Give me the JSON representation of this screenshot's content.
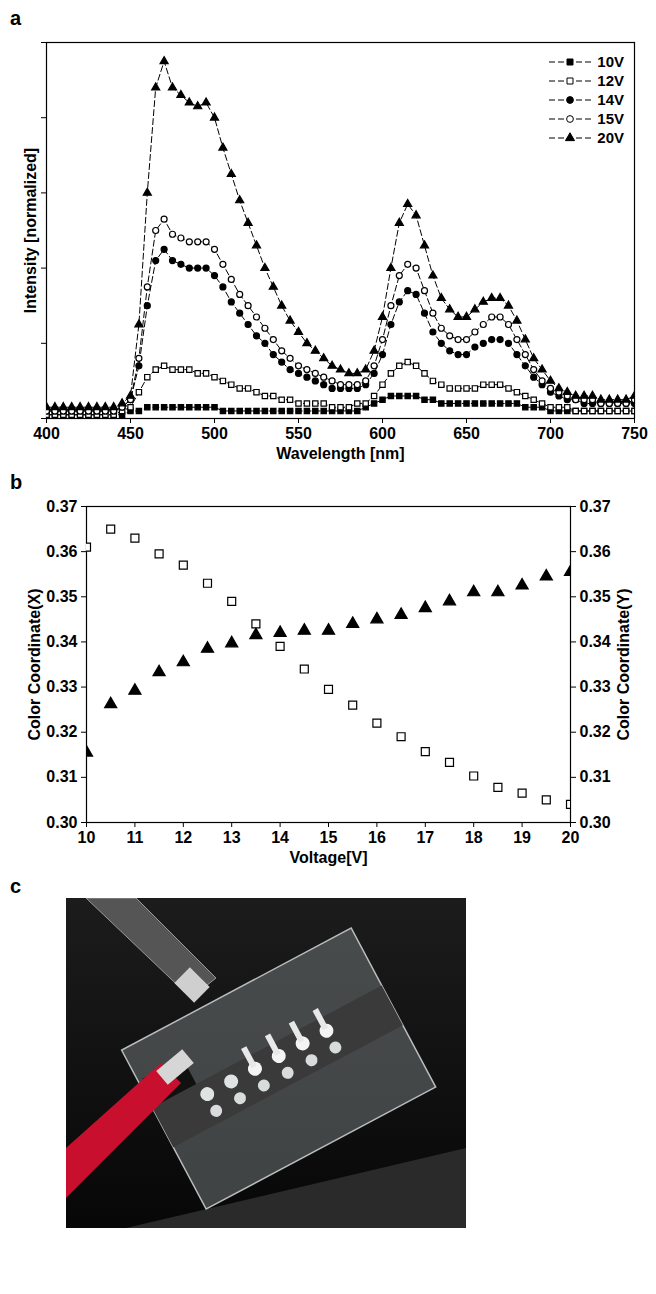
{
  "chart_data": [
    {
      "type": "line",
      "panel_label": "a",
      "xlabel": "Wavelength [nm]",
      "ylabel": "Intensity [normalized]",
      "xlim": [
        400,
        750
      ],
      "xticks": [
        400,
        450,
        500,
        550,
        600,
        650,
        700,
        750
      ],
      "ylim": [
        0,
        1
      ],
      "yticks": [
        0,
        0.2,
        0.4,
        0.6,
        0.8,
        1
      ],
      "tick_labels": "x",
      "legend": "upper right",
      "x": [
        400,
        405,
        410,
        415,
        420,
        425,
        430,
        435,
        440,
        445,
        450,
        455,
        460,
        465,
        470,
        475,
        480,
        485,
        490,
        495,
        500,
        505,
        510,
        515,
        520,
        525,
        530,
        535,
        540,
        545,
        550,
        555,
        560,
        565,
        570,
        575,
        580,
        585,
        590,
        595,
        600,
        605,
        610,
        615,
        620,
        625,
        630,
        635,
        640,
        645,
        650,
        655,
        660,
        665,
        670,
        675,
        680,
        685,
        690,
        695,
        700,
        705,
        710,
        715,
        720,
        725,
        730,
        735,
        740,
        745,
        750
      ],
      "series": [
        {
          "name": "10V",
          "color": "#000000",
          "marker": "square",
          "line_style": "dashed",
          "values": [
            0.01,
            0.01,
            0.01,
            0.01,
            0.01,
            0.01,
            0.01,
            0.01,
            0.01,
            0.01,
            0.02,
            0.02,
            0.03,
            0.03,
            0.03,
            0.03,
            0.03,
            0.03,
            0.03,
            0.03,
            0.03,
            0.02,
            0.02,
            0.02,
            0.02,
            0.02,
            0.02,
            0.02,
            0.02,
            0.02,
            0.02,
            0.02,
            0.02,
            0.02,
            0.02,
            0.02,
            0.02,
            0.02,
            0.03,
            0.04,
            0.05,
            0.06,
            0.06,
            0.06,
            0.06,
            0.05,
            0.05,
            0.04,
            0.04,
            0.04,
            0.04,
            0.04,
            0.04,
            0.04,
            0.04,
            0.04,
            0.04,
            0.03,
            0.03,
            0.03,
            0.02,
            0.02,
            0.02,
            0.02,
            0.02,
            0.02,
            0.02,
            0.02,
            0.02,
            0.02,
            0.02
          ]
        },
        {
          "name": "12V",
          "color": "#000000",
          "marker": "square-open",
          "line_style": "dashed",
          "values": [
            0.01,
            0.01,
            0.01,
            0.01,
            0.01,
            0.01,
            0.01,
            0.01,
            0.01,
            0.02,
            0.03,
            0.07,
            0.11,
            0.13,
            0.14,
            0.13,
            0.13,
            0.13,
            0.12,
            0.12,
            0.11,
            0.1,
            0.09,
            0.08,
            0.08,
            0.07,
            0.06,
            0.06,
            0.05,
            0.05,
            0.04,
            0.04,
            0.04,
            0.04,
            0.03,
            0.03,
            0.03,
            0.04,
            0.04,
            0.06,
            0.09,
            0.12,
            0.14,
            0.15,
            0.14,
            0.12,
            0.1,
            0.09,
            0.08,
            0.08,
            0.08,
            0.08,
            0.09,
            0.09,
            0.09,
            0.08,
            0.07,
            0.06,
            0.05,
            0.04,
            0.03,
            0.03,
            0.03,
            0.02,
            0.02,
            0.02,
            0.02,
            0.02,
            0.02,
            0.02,
            0.02
          ]
        },
        {
          "name": "14V",
          "color": "#000000",
          "marker": "circle",
          "line_style": "dashed",
          "values": [
            0.02,
            0.02,
            0.02,
            0.02,
            0.02,
            0.02,
            0.02,
            0.02,
            0.02,
            0.03,
            0.05,
            0.14,
            0.3,
            0.42,
            0.45,
            0.42,
            0.41,
            0.4,
            0.4,
            0.4,
            0.38,
            0.35,
            0.31,
            0.28,
            0.25,
            0.22,
            0.2,
            0.17,
            0.15,
            0.13,
            0.12,
            0.11,
            0.1,
            0.09,
            0.08,
            0.08,
            0.08,
            0.08,
            0.09,
            0.12,
            0.17,
            0.25,
            0.31,
            0.34,
            0.33,
            0.28,
            0.23,
            0.2,
            0.18,
            0.17,
            0.17,
            0.19,
            0.2,
            0.21,
            0.21,
            0.2,
            0.17,
            0.14,
            0.11,
            0.09,
            0.07,
            0.06,
            0.05,
            0.05,
            0.04,
            0.04,
            0.04,
            0.04,
            0.04,
            0.04,
            0.04
          ]
        },
        {
          "name": "15V",
          "color": "#000000",
          "marker": "circle-open",
          "line_style": "dashed",
          "values": [
            0.02,
            0.02,
            0.02,
            0.02,
            0.02,
            0.02,
            0.02,
            0.02,
            0.02,
            0.03,
            0.05,
            0.16,
            0.35,
            0.5,
            0.53,
            0.49,
            0.48,
            0.47,
            0.47,
            0.47,
            0.45,
            0.41,
            0.37,
            0.33,
            0.3,
            0.27,
            0.24,
            0.21,
            0.18,
            0.16,
            0.14,
            0.13,
            0.12,
            0.11,
            0.1,
            0.09,
            0.09,
            0.09,
            0.1,
            0.14,
            0.21,
            0.3,
            0.38,
            0.41,
            0.4,
            0.34,
            0.28,
            0.24,
            0.22,
            0.21,
            0.21,
            0.23,
            0.25,
            0.27,
            0.27,
            0.25,
            0.21,
            0.17,
            0.13,
            0.1,
            0.08,
            0.07,
            0.06,
            0.05,
            0.05,
            0.05,
            0.04,
            0.04,
            0.04,
            0.04,
            0.05
          ]
        },
        {
          "name": "20V",
          "color": "#000000",
          "marker": "triangle",
          "line_style": "dashed",
          "values": [
            0.03,
            0.03,
            0.03,
            0.03,
            0.03,
            0.03,
            0.03,
            0.03,
            0.03,
            0.04,
            0.06,
            0.25,
            0.6,
            0.88,
            0.95,
            0.88,
            0.86,
            0.84,
            0.83,
            0.84,
            0.8,
            0.72,
            0.65,
            0.58,
            0.52,
            0.46,
            0.4,
            0.35,
            0.3,
            0.26,
            0.23,
            0.2,
            0.18,
            0.16,
            0.14,
            0.13,
            0.12,
            0.12,
            0.13,
            0.18,
            0.27,
            0.4,
            0.52,
            0.57,
            0.54,
            0.46,
            0.38,
            0.32,
            0.29,
            0.27,
            0.27,
            0.29,
            0.31,
            0.32,
            0.32,
            0.3,
            0.26,
            0.21,
            0.16,
            0.13,
            0.1,
            0.08,
            0.07,
            0.06,
            0.06,
            0.06,
            0.05,
            0.05,
            0.05,
            0.05,
            0.06
          ]
        }
      ]
    },
    {
      "type": "scatter",
      "panel_label": "b",
      "xlabel": "Voltage[V]",
      "ylabel": "Color Coordinate(X)",
      "y2label": "Color Coordinate(Y)",
      "xlim": [
        10,
        20
      ],
      "xticks": [
        10,
        11,
        12,
        13,
        14,
        15,
        16,
        17,
        18,
        19,
        20
      ],
      "ylim": [
        0.3,
        0.37
      ],
      "yticks": [
        {
          "value": 0.3,
          "label": "0.30"
        },
        0.31,
        0.32,
        0.33,
        0.34,
        0.35,
        0.36,
        0.37
      ],
      "y2lim": [
        0.3,
        0.37
      ],
      "y2ticks": [
        {
          "value": 0.3,
          "label": "0.30"
        },
        0.31,
        0.32,
        0.33,
        0.34,
        0.35,
        0.36,
        0.37
      ],
      "x": [
        10,
        10.5,
        11,
        11.5,
        12,
        12.5,
        13,
        13.5,
        14,
        14.5,
        15,
        15.5,
        16,
        16.5,
        17,
        17.5,
        18,
        18.5,
        19,
        19.5,
        20
      ],
      "series": [
        {
          "color": "#000000",
          "marker": "square-open",
          "axis": "y",
          "values": [
            0.361,
            0.365,
            0.363,
            0.3595,
            0.357,
            0.353,
            0.349,
            0.344,
            0.339,
            0.334,
            0.3295,
            0.326,
            0.322,
            0.319,
            0.3157,
            0.3133,
            0.3103,
            0.3078,
            0.3065,
            0.305,
            0.304
          ]
        },
        {
          "color": "#000000",
          "marker": "triangle",
          "axis": "y2",
          "values": [
            0.3155,
            0.3262,
            0.3292,
            0.3333,
            0.3355,
            0.3385,
            0.3397,
            0.3415,
            0.342,
            0.3425,
            0.3425,
            0.344,
            0.345,
            0.346,
            0.3475,
            0.349,
            0.351,
            0.351,
            0.3525,
            0.3545,
            0.3555
          ]
        }
      ]
    }
  ],
  "photo": {
    "panel_label": "c"
  }
}
